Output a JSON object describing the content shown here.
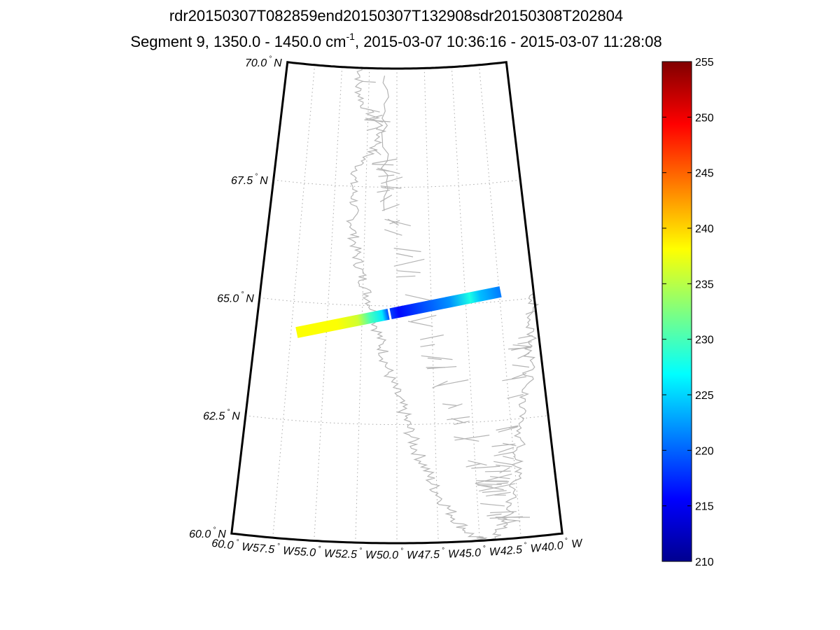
{
  "title": {
    "line1": "rdr20150307T082859end20150307T132908sdr20150308T202804",
    "line2_prefix": "Segment 9, 1350.0 - 1450.0 cm",
    "line2_sup": "-1",
    "line2_suffix": ", 2015-03-07 10:36:16 - 2015-03-07 11:28:08"
  },
  "map": {
    "projection": "conic",
    "lat_range": [
      60.0,
      70.0
    ],
    "lon_range": [
      -60.0,
      -40.0
    ],
    "lat_labels": [
      {
        "value": "70.0",
        "hemi": "N"
      },
      {
        "value": "67.5",
        "hemi": "N"
      },
      {
        "value": "65.0",
        "hemi": "N"
      },
      {
        "value": "62.5",
        "hemi": "N"
      },
      {
        "value": "60.0",
        "hemi": "N"
      }
    ],
    "lon_labels": [
      {
        "value": "60.0",
        "hemi": "W"
      },
      {
        "value": "57.5",
        "hemi": "W"
      },
      {
        "value": "55.0",
        "hemi": "W"
      },
      {
        "value": "52.5",
        "hemi": "W"
      },
      {
        "value": "50.0",
        "hemi": "W"
      },
      {
        "value": "47.5",
        "hemi": "W"
      },
      {
        "value": "45.0",
        "hemi": "W"
      },
      {
        "value": "42.5",
        "hemi": "W"
      },
      {
        "value": "40.0",
        "hemi": "W"
      }
    ],
    "degree_symbol": "°",
    "coastline_color": "#b4b4b4",
    "swath": {
      "west_end": {
        "lat": 64.35,
        "lon": -57.1
      },
      "east_end": {
        "lat": 65.2,
        "lon": -42.4
      },
      "gap_lon": -50.4,
      "value_profile": [
        {
          "t": 0.0,
          "v": 238
        },
        {
          "t": 0.2,
          "v": 238
        },
        {
          "t": 0.3,
          "v": 236
        },
        {
          "t": 0.36,
          "v": 230
        },
        {
          "t": 0.42,
          "v": 226
        },
        {
          "t": 0.45,
          "v": 219
        },
        {
          "t": 0.5,
          "v": 216
        },
        {
          "t": 0.62,
          "v": 219
        },
        {
          "t": 0.75,
          "v": 222
        },
        {
          "t": 0.85,
          "v": 228
        },
        {
          "t": 0.9,
          "v": 224
        },
        {
          "t": 1.0,
          "v": 221
        }
      ]
    }
  },
  "colorbar": {
    "min": 210,
    "max": 255,
    "ticks": [
      "210",
      "215",
      "220",
      "225",
      "230",
      "235",
      "240",
      "245",
      "250",
      "255"
    ],
    "colormap": "jet"
  }
}
